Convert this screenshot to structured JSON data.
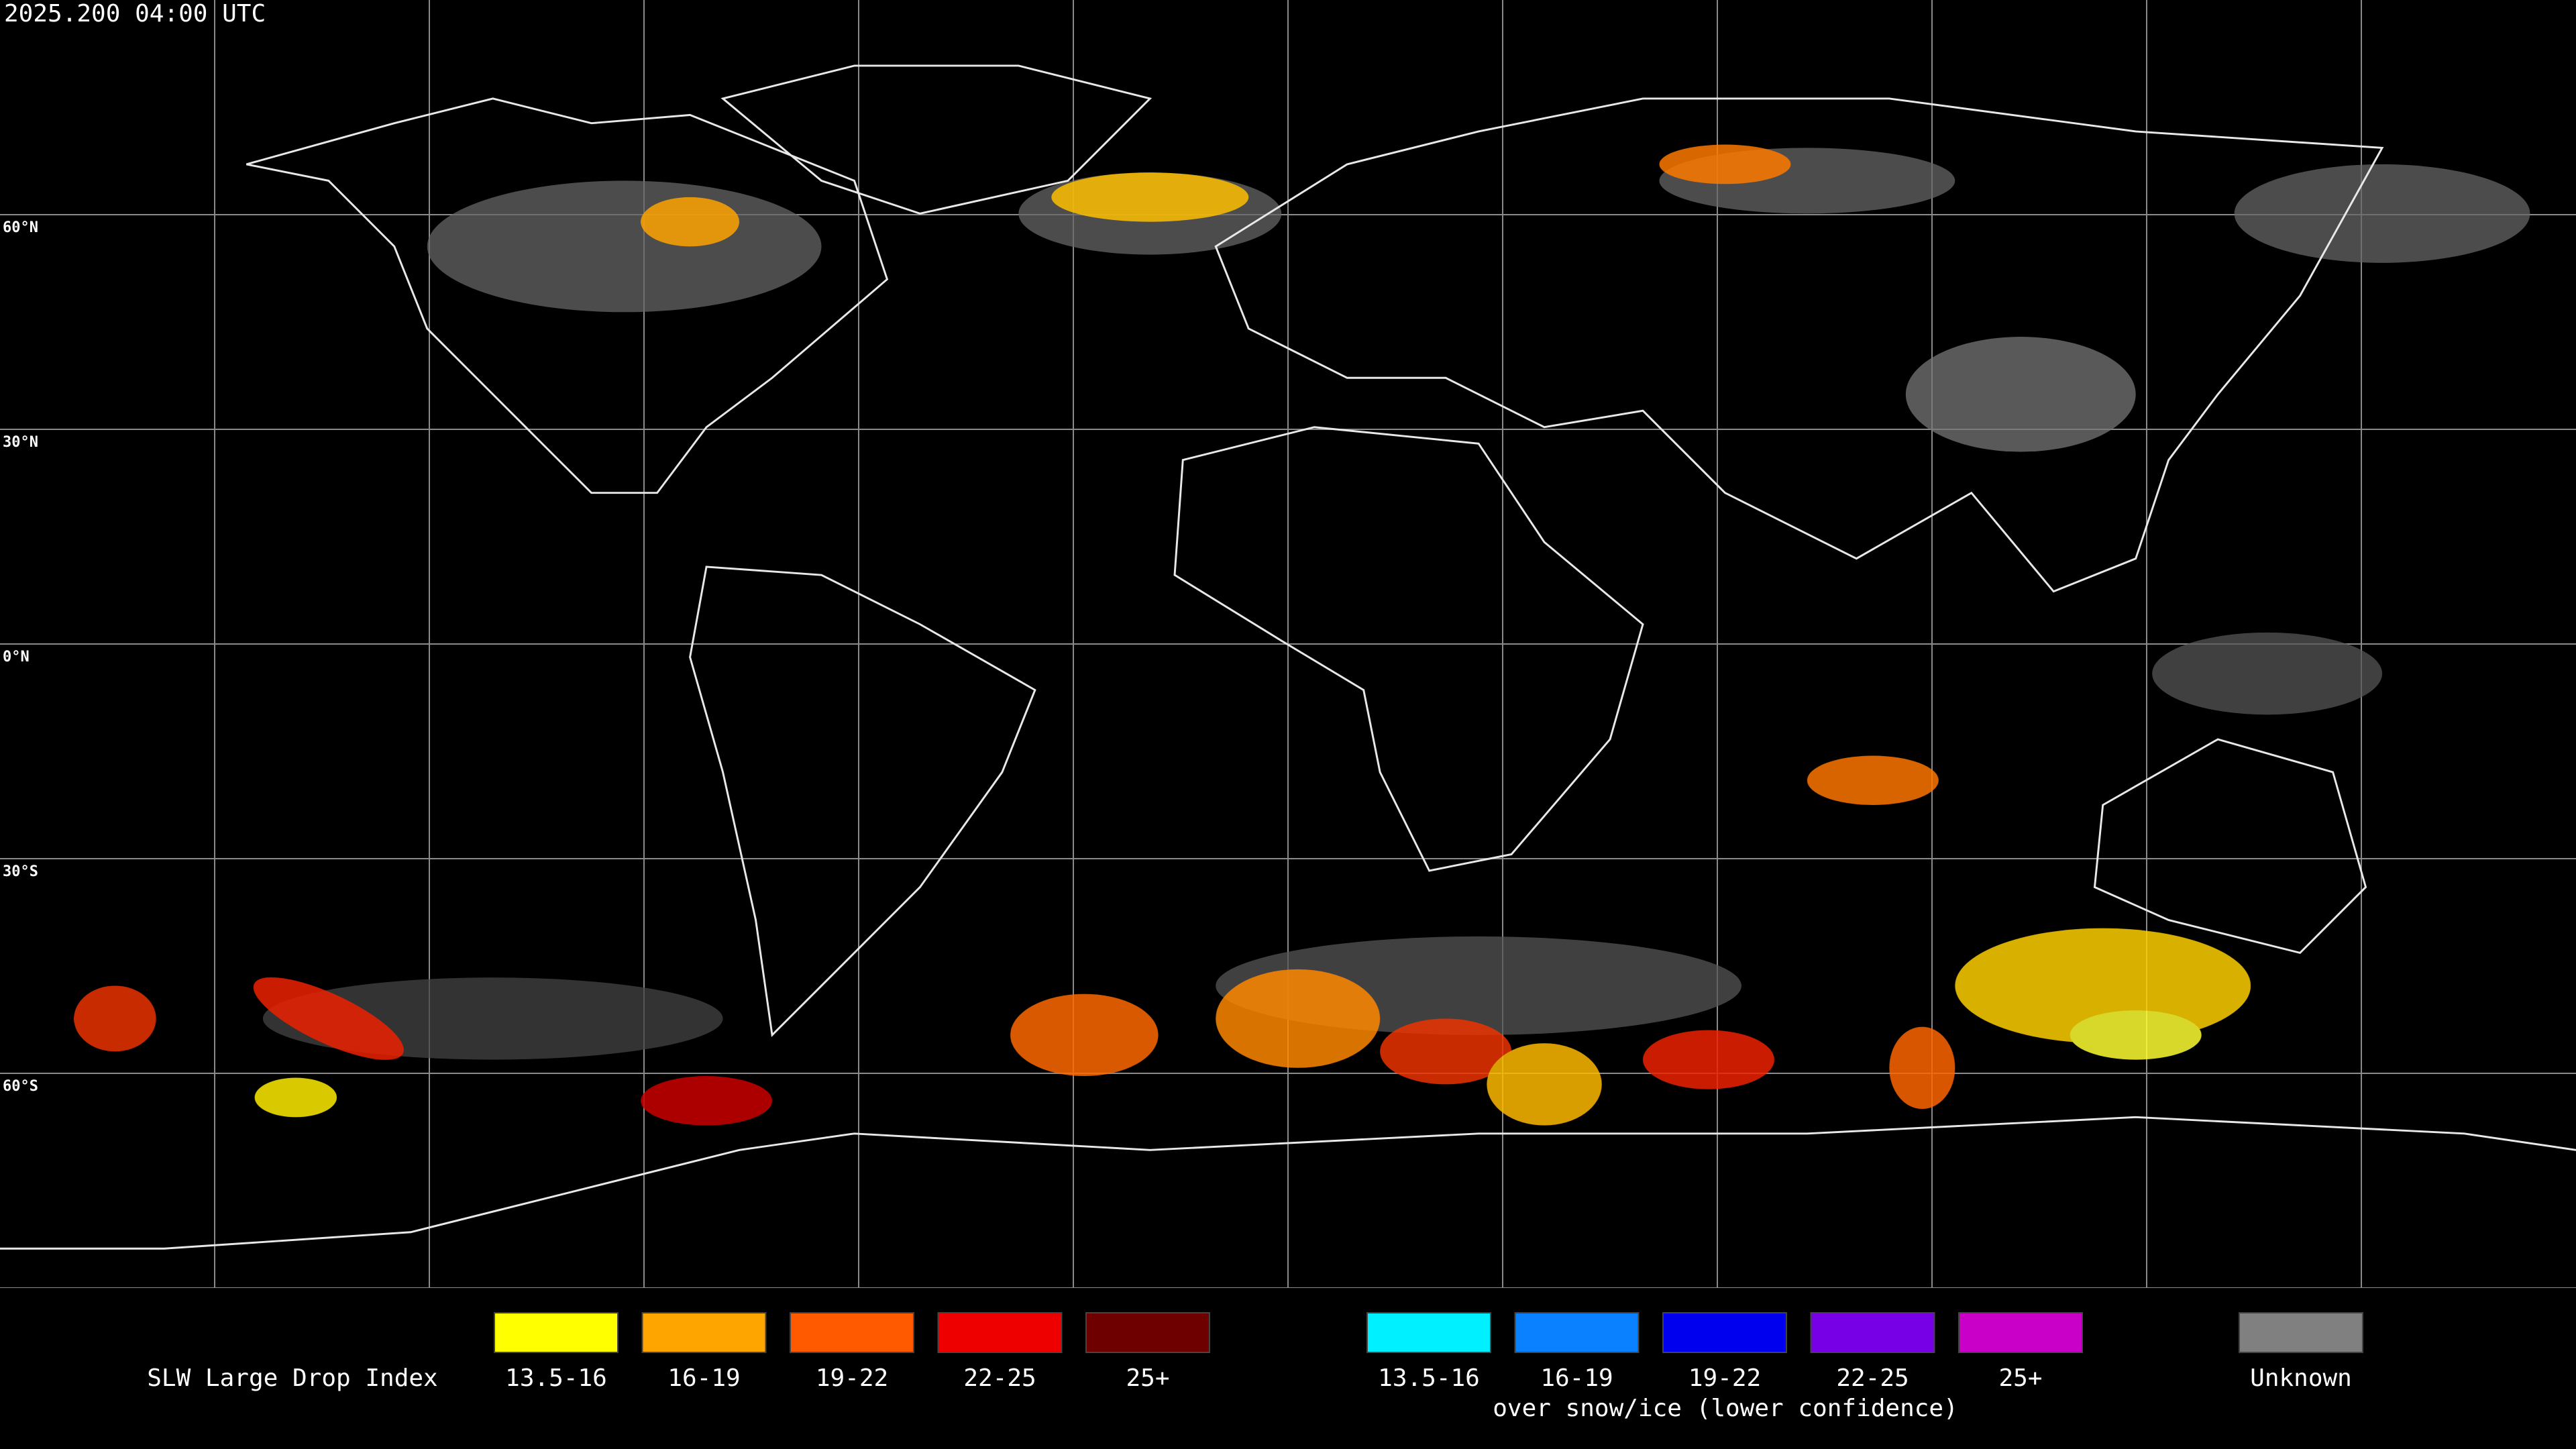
{
  "header": {
    "timestamp": "2025.200 04:00 UTC"
  },
  "grid": {
    "lat_labels": [
      "60°N",
      "30°N",
      "0°N",
      "30°S",
      "60°S"
    ]
  },
  "legend": {
    "title": "SLW Large Drop Index",
    "groups": [
      {
        "items": [
          {
            "label": "13.5-16",
            "color": "#ffff00"
          },
          {
            "label": "16-19",
            "color": "#ffa500"
          },
          {
            "label": "19-22",
            "color": "#ff5a00"
          },
          {
            "label": "22-25",
            "color": "#ee0000"
          },
          {
            "label": "25+",
            "color": "#6e0000"
          }
        ]
      },
      {
        "caption": "over snow/ice (lower confidence)",
        "items": [
          {
            "label": "13.5-16",
            "color": "#00f0ff"
          },
          {
            "label": "16-19",
            "color": "#0a82ff"
          },
          {
            "label": "19-22",
            "color": "#0000ee"
          },
          {
            "label": "22-25",
            "color": "#7800e6"
          },
          {
            "label": "25+",
            "color": "#c800c8"
          }
        ]
      }
    ],
    "unknown": {
      "label": "Unknown",
      "color": "#808080"
    }
  }
}
